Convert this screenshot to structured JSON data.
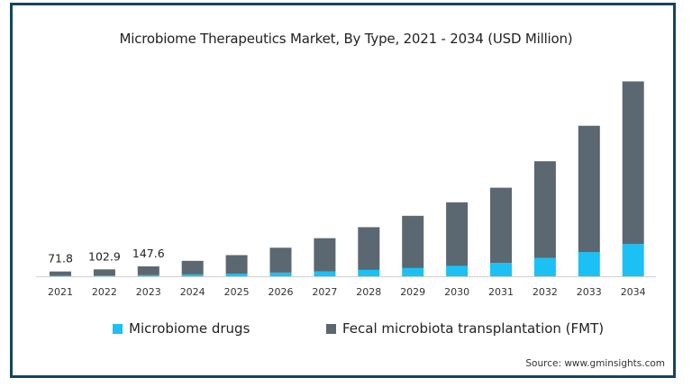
{
  "chart_data": {
    "type": "bar",
    "stacked": true,
    "title": "Microbiome Therapeutics Market, By Type, 2021 - 2034 (USD Million)",
    "categories": [
      "2021",
      "2022",
      "2023",
      "2024",
      "2025",
      "2026",
      "2027",
      "2028",
      "2029",
      "2030",
      "2031",
      "2032",
      "2033",
      "2034"
    ],
    "series": [
      {
        "name": "Microbiome drugs",
        "color": "#1bc1f5",
        "values": [
          8,
          12,
          17,
          28,
          40,
          55,
          72,
          95,
          122,
          155,
          198,
          272,
          360,
          480
        ]
      },
      {
        "name": "Fecal microbiota transplantation (FMT)",
        "color": "#5b6771",
        "values": [
          63.8,
          90.9,
          130.6,
          202,
          275,
          370,
          495,
          636,
          778,
          946,
          1120,
          1440,
          1880,
          2420
        ]
      }
    ],
    "data_labels": [
      "71.8",
      "102.9",
      "147.6"
    ],
    "ylim": [
      0,
      3000
    ],
    "xlabel": "",
    "ylabel": ""
  },
  "legend": {
    "drugs_label": "Microbiome drugs",
    "fmt_label": "Fecal microbiota transplantation (FMT)"
  },
  "source": "Source: www.gminsights.com"
}
